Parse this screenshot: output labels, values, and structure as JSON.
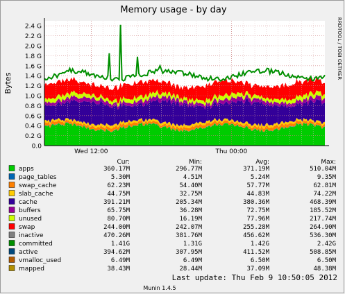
{
  "chart_data": {
    "type": "area",
    "title": "Memory usage - by day",
    "ylabel": "Bytes",
    "side_label": "RRDTOOL / TOBI OETIKER",
    "y_unit": "G",
    "ylim": [
      0,
      2.5
    ],
    "y_ticks": [
      "0.0",
      "0.2 G",
      "0.4 G",
      "0.6 G",
      "0.8 G",
      "1.0 G",
      "1.2 G",
      "1.4 G",
      "1.6 G",
      "1.8 G",
      "2.0 G",
      "2.2 G",
      "2.4 G"
    ],
    "x_ticks": [
      "Wed 12:00",
      "Thu 00:00"
    ],
    "grid": true,
    "stack_order": [
      "apps",
      "page_tables",
      "swap_cache",
      "slab_cache",
      "cache",
      "buffers",
      "unused",
      "swap"
    ],
    "line_series": [
      "committed"
    ],
    "committed_spikes": [
      {
        "x": "Wed 13:00",
        "value": 2.42
      },
      {
        "x": "Wed 12:20",
        "value": 1.85
      },
      {
        "x": "Wed 13:50",
        "value": 1.78
      },
      {
        "x": "Wed 15:00",
        "value": 1.6
      }
    ]
  },
  "legend": {
    "headers": {
      "cur": "Cur:",
      "min": "Min:",
      "avg": "Avg:",
      "max": "Max:"
    },
    "rows": [
      {
        "name": "apps",
        "color": "#00cc00",
        "cur": "360.17M",
        "min": "296.77M",
        "avg": "371.19M",
        "max": "510.04M"
      },
      {
        "name": "page_tables",
        "color": "#0066b3",
        "cur": "5.30M",
        "min": "4.51M",
        "avg": "5.24M",
        "max": "9.35M"
      },
      {
        "name": "swap_cache",
        "color": "#ff8000",
        "cur": "62.23M",
        "min": "54.40M",
        "avg": "57.77M",
        "max": "62.81M"
      },
      {
        "name": "slab_cache",
        "color": "#ffcc00",
        "cur": "44.75M",
        "min": "32.75M",
        "avg": "44.83M",
        "max": "74.22M"
      },
      {
        "name": "cache",
        "color": "#330099",
        "cur": "391.21M",
        "min": "205.34M",
        "avg": "380.36M",
        "max": "468.39M"
      },
      {
        "name": "buffers",
        "color": "#990099",
        "cur": "65.75M",
        "min": "36.28M",
        "avg": "72.75M",
        "max": "185.52M"
      },
      {
        "name": "unused",
        "color": "#ccff00",
        "cur": "80.70M",
        "min": "16.19M",
        "avg": "77.96M",
        "max": "217.74M"
      },
      {
        "name": "swap",
        "color": "#ff0000",
        "cur": "244.00M",
        "min": "242.07M",
        "avg": "255.28M",
        "max": "264.90M"
      },
      {
        "name": "inactive",
        "color": "#808080",
        "cur": "470.26M",
        "min": "381.76M",
        "avg": "456.62M",
        "max": "536.30M"
      },
      {
        "name": "committed",
        "color": "#008f00",
        "cur": "1.41G",
        "min": "1.31G",
        "avg": "1.42G",
        "max": "2.42G"
      },
      {
        "name": "active",
        "color": "#00487d",
        "cur": "394.62M",
        "min": "307.95M",
        "avg": "411.52M",
        "max": "508.85M"
      },
      {
        "name": "vmalloc_used",
        "color": "#b35a00",
        "cur": "6.49M",
        "min": "6.49M",
        "avg": "6.50M",
        "max": "6.50M"
      },
      {
        "name": "mapped",
        "color": "#b38f00",
        "cur": "38.43M",
        "min": "28.44M",
        "avg": "37.09M",
        "max": "48.38M"
      }
    ]
  },
  "footer": {
    "last_update": "Last update:  Thu Feb  9 10:50:05 2012",
    "version": "Munin 1.4.5"
  }
}
